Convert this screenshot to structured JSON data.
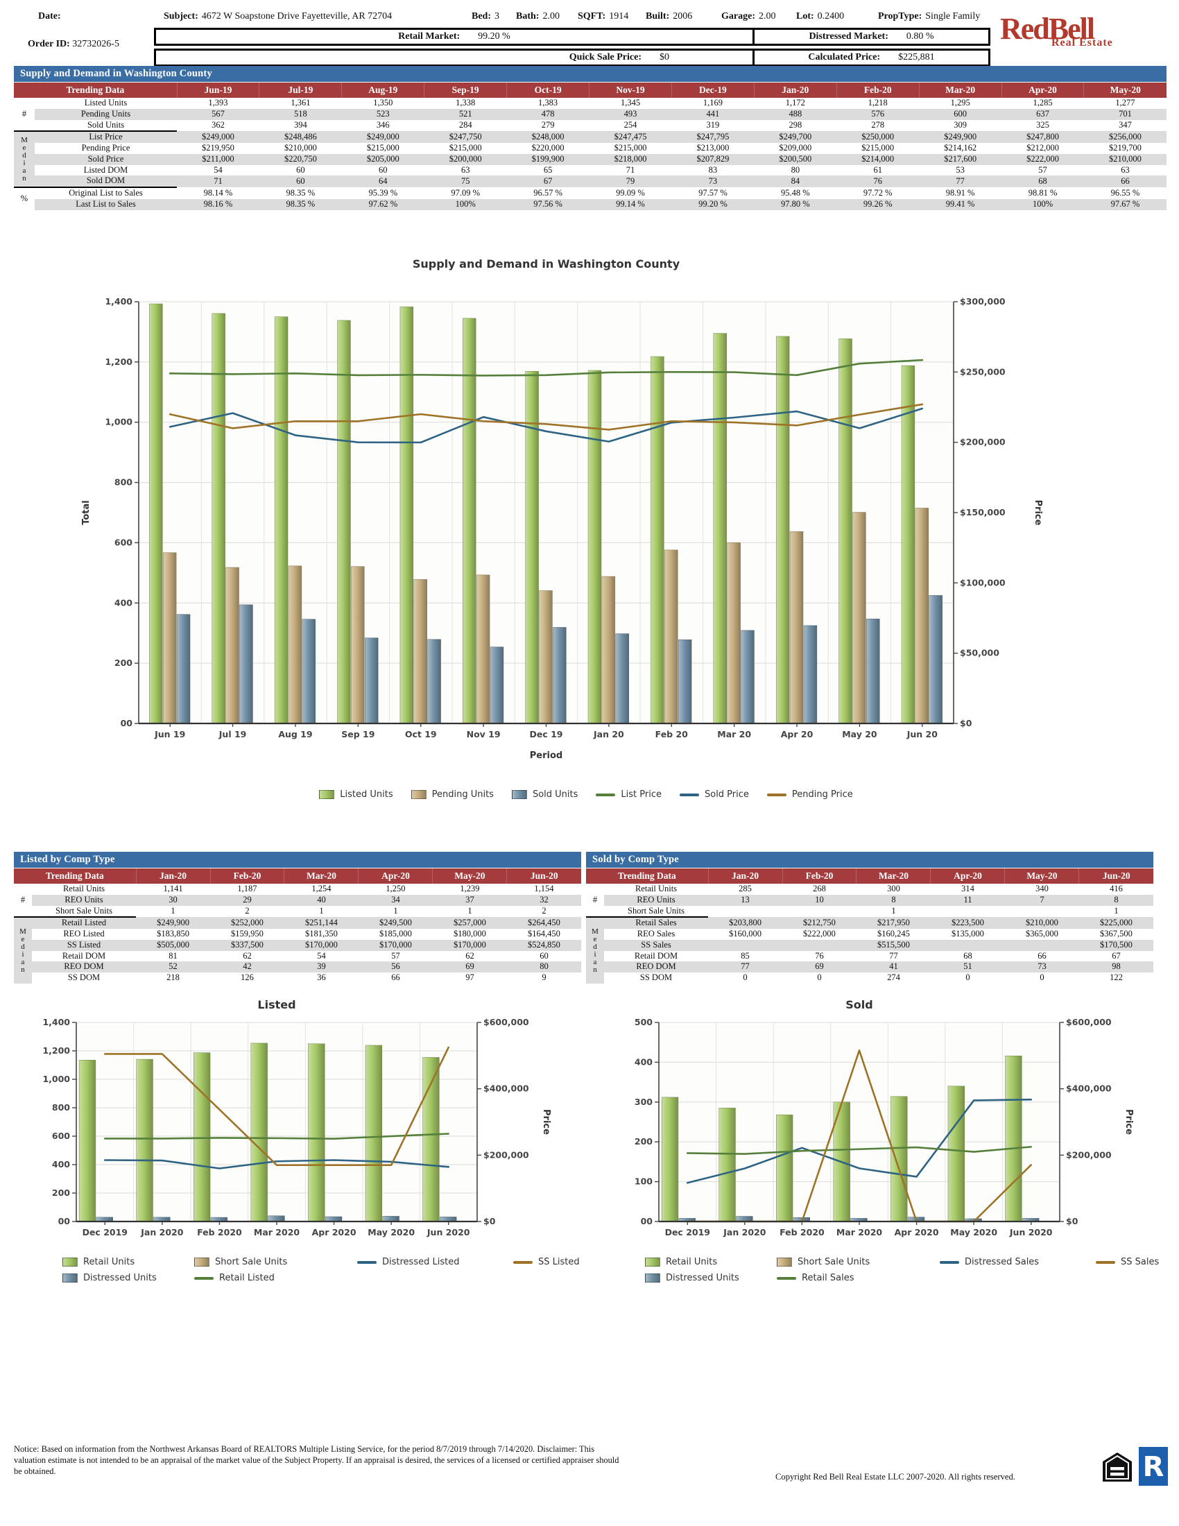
{
  "header": {
    "fields": [
      {
        "label": "Date:",
        "value": ""
      },
      {
        "label": "Subject:",
        "value": "4672 W Soapstone Drive Fayetteville, AR 72704"
      },
      {
        "label": "Bed:",
        "value": "3"
      },
      {
        "label": "Bath:",
        "value": "2.00"
      },
      {
        "label": "SQFT:",
        "value": "1914"
      },
      {
        "label": "Built:",
        "value": "2006"
      },
      {
        "label": "Garage:",
        "value": "2.00"
      },
      {
        "label": "Lot:",
        "value": "0.2400"
      },
      {
        "label": "PropType:",
        "value": "Single Family"
      }
    ],
    "order_id_label": "Order ID:",
    "order_id": "32732026-5",
    "retail_market_label": "Retail Market:",
    "retail_market_value": "99.20 %",
    "distressed_market_label": "Distressed Market:",
    "distressed_market_value": "0.80 %",
    "quick_sale_label": "Quick Sale Price:",
    "quick_sale_value": "$0",
    "calculated_label": "Calculated Price:",
    "calculated_value": "$225,881",
    "logo_title": "RedBell",
    "logo_subtitle": "Real Estate"
  },
  "supply_table": {
    "title": "Supply and Demand in Washington County",
    "first_column": "Trending Data",
    "months": [
      "Jun-19",
      "Jul-19",
      "Aug-19",
      "Sep-19",
      "Oct-19",
      "Nov-19",
      "Dec-19",
      "Jan-20",
      "Feb-20",
      "Mar-20",
      "Apr-20",
      "May-20"
    ],
    "groups": [
      {
        "label": "#",
        "rows": [
          {
            "label": "Listed Units",
            "values": [
              "1,393",
              "1,361",
              "1,350",
              "1,338",
              "1,383",
              "1,345",
              "1,169",
              "1,172",
              "1,218",
              "1,295",
              "1,285",
              "1,277"
            ]
          },
          {
            "label": "Pending Units",
            "values": [
              "567",
              "518",
              "523",
              "521",
              "478",
              "493",
              "441",
              "488",
              "576",
              "600",
              "637",
              "701"
            ]
          },
          {
            "label": "Sold Units",
            "values": [
              "362",
              "394",
              "346",
              "284",
              "279",
              "254",
              "319",
              "298",
              "278",
              "309",
              "325",
              "347"
            ]
          }
        ]
      },
      {
        "label": "Median",
        "rows": [
          {
            "label": "List Price",
            "values": [
              "$249,000",
              "$248,486",
              "$249,000",
              "$247,750",
              "$248,000",
              "$247,475",
              "$247,795",
              "$249,700",
              "$250,000",
              "$249,900",
              "$247,800",
              "$256,000"
            ]
          },
          {
            "label": "Pending Price",
            "values": [
              "$219,950",
              "$210,000",
              "$215,000",
              "$215,000",
              "$220,000",
              "$215,000",
              "$213,000",
              "$209,000",
              "$215,000",
              "$214,162",
              "$212,000",
              "$219,700"
            ]
          },
          {
            "label": "Sold Price",
            "values": [
              "$211,000",
              "$220,750",
              "$205,000",
              "$200,000",
              "$199,900",
              "$218,000",
              "$207,829",
              "$200,500",
              "$214,000",
              "$217,600",
              "$222,000",
              "$210,000"
            ]
          },
          {
            "label": "Listed DOM",
            "values": [
              "54",
              "60",
              "60",
              "63",
              "65",
              "71",
              "83",
              "80",
              "61",
              "53",
              "57",
              "63"
            ]
          },
          {
            "label": "Sold DOM",
            "values": [
              "71",
              "60",
              "64",
              "75",
              "67",
              "79",
              "73",
              "84",
              "76",
              "77",
              "68",
              "66"
            ]
          }
        ]
      },
      {
        "label": "%",
        "rows": [
          {
            "label": "Original List to Sales",
            "values": [
              "98.14 %",
              "98.35 %",
              "95.39 %",
              "97.09 %",
              "96.57 %",
              "99.09 %",
              "97.57 %",
              "95.48 %",
              "97.72 %",
              "98.91 %",
              "98.81 %",
              "96.55 %"
            ]
          },
          {
            "label": "Last List to Sales",
            "values": [
              "98.16 %",
              "98.35 %",
              "97.62 %",
              "100%",
              "97.56 %",
              "99.14 %",
              "99.20 %",
              "97.80 %",
              "99.26 %",
              "99.41 %",
              "100%",
              "97.67 %"
            ]
          }
        ]
      }
    ]
  },
  "listed_table": {
    "title": "Listed by Comp Type",
    "first_column": "Trending Data",
    "months": [
      "Jan-20",
      "Feb-20",
      "Mar-20",
      "Apr-20",
      "May-20",
      "Jun-20"
    ],
    "groups": [
      {
        "label": "#",
        "rows": [
          {
            "label": "Retail Units",
            "values": [
              "1,141",
              "1,187",
              "1,254",
              "1,250",
              "1,239",
              "1,154"
            ]
          },
          {
            "label": "REO Units",
            "values": [
              "30",
              "29",
              "40",
              "34",
              "37",
              "32"
            ]
          },
          {
            "label": "Short Sale Units",
            "values": [
              "1",
              "2",
              "1",
              "1",
              "1",
              "2"
            ]
          }
        ]
      },
      {
        "label": "Median",
        "rows": [
          {
            "label": "Retail Listed",
            "values": [
              "$249,900",
              "$252,000",
              "$251,144",
              "$249,500",
              "$257,000",
              "$264,450"
            ]
          },
          {
            "label": "REO Listed",
            "values": [
              "$183,850",
              "$159,950",
              "$181,350",
              "$185,000",
              "$180,000",
              "$164,450"
            ]
          },
          {
            "label": "SS Listed",
            "values": [
              "$505,000",
              "$337,500",
              "$170,000",
              "$170,000",
              "$170,000",
              "$524,850"
            ]
          },
          {
            "label": "Retail DOM",
            "values": [
              "81",
              "62",
              "54",
              "57",
              "62",
              "60"
            ]
          },
          {
            "label": "REO DOM",
            "values": [
              "52",
              "42",
              "39",
              "56",
              "69",
              "80"
            ]
          },
          {
            "label": "SS DOM",
            "values": [
              "218",
              "126",
              "36",
              "66",
              "97",
              "9"
            ]
          }
        ]
      }
    ]
  },
  "sold_table": {
    "title": "Sold by Comp Type",
    "first_column": "Trending Data",
    "months": [
      "Jan-20",
      "Feb-20",
      "Mar-20",
      "Apr-20",
      "May-20",
      "Jun-20"
    ],
    "groups": [
      {
        "label": "#",
        "rows": [
          {
            "label": "Retail Units",
            "values": [
              "285",
              "268",
              "300",
              "314",
              "340",
              "416"
            ]
          },
          {
            "label": "REO Units",
            "values": [
              "13",
              "10",
              "8",
              "11",
              "7",
              "8"
            ]
          },
          {
            "label": "Short Sale Units",
            "values": [
              "",
              "",
              "1",
              "",
              "",
              "1"
            ]
          }
        ]
      },
      {
        "label": "Median",
        "rows": [
          {
            "label": "Retail Sales",
            "values": [
              "$203,800",
              "$212,750",
              "$217,950",
              "$223,500",
              "$210,000",
              "$225,000"
            ]
          },
          {
            "label": "REO Sales",
            "values": [
              "$160,000",
              "$222,000",
              "$160,245",
              "$135,000",
              "$365,000",
              "$367,500"
            ]
          },
          {
            "label": "SS Sales",
            "values": [
              "",
              "",
              "$515,500",
              "",
              "",
              "$170,500"
            ]
          },
          {
            "label": "Retail DOM",
            "values": [
              "85",
              "76",
              "77",
              "68",
              "66",
              "67"
            ]
          },
          {
            "label": "REO DOM",
            "values": [
              "77",
              "69",
              "41",
              "51",
              "73",
              "98"
            ]
          },
          {
            "label": "SS DOM",
            "values": [
              "0",
              "0",
              "274",
              "0",
              "0",
              "122"
            ]
          }
        ]
      }
    ]
  },
  "chart_data": [
    {
      "id": "main",
      "type": "bar",
      "title": "Supply and Demand in Washington County",
      "categories": [
        "Jun 19",
        "Jul 19",
        "Aug 19",
        "Sep 19",
        "Oct 19",
        "Nov 19",
        "Dec 19",
        "Jan 20",
        "Feb 20",
        "Mar 20",
        "Apr 20",
        "May 20",
        "Jun 20"
      ],
      "bar_series": [
        {
          "name": "Listed Units",
          "color": "#a6c965",
          "values": [
            1393,
            1361,
            1350,
            1338,
            1383,
            1345,
            1169,
            1172,
            1218,
            1295,
            1285,
            1277,
            1188
          ]
        },
        {
          "name": "Pending Units",
          "color": "#c7ae7e",
          "values": [
            567,
            518,
            523,
            521,
            478,
            493,
            441,
            488,
            576,
            600,
            637,
            701,
            715
          ]
        },
        {
          "name": "Sold Units",
          "color": "#7392a8",
          "values": [
            362,
            394,
            346,
            284,
            279,
            254,
            319,
            298,
            278,
            309,
            325,
            347,
            425
          ]
        }
      ],
      "line_series": [
        {
          "name": "List Price",
          "color": "#55803c",
          "values": [
            249000,
            248486,
            249000,
            247750,
            248000,
            247475,
            247795,
            249700,
            250000,
            249900,
            247800,
            256000,
            258500
          ]
        },
        {
          "name": "Sold Price",
          "color": "#2e6384",
          "values": [
            211000,
            220750,
            205000,
            200000,
            199900,
            218000,
            207829,
            200500,
            214000,
            217600,
            222000,
            210000,
            224000
          ]
        },
        {
          "name": "Pending Price",
          "color": "#9e7327",
          "values": [
            219950,
            210000,
            215000,
            215000,
            220000,
            215000,
            213000,
            209000,
            215000,
            214162,
            212000,
            219700,
            227000
          ]
        }
      ],
      "xlabel": "Period",
      "ylabel_left": "Total",
      "ylabel_right": "Price",
      "ylim_left": [
        0,
        1400
      ],
      "ystep_left": 200,
      "ylim_right": [
        0,
        300000
      ],
      "ystep_right": 50000,
      "grid": true,
      "legend_position": "bottom",
      "legend_order": [
        "Listed Units",
        "Pending Units",
        "Sold Units",
        "List Price",
        "Sold Price",
        "Pending Price"
      ]
    },
    {
      "id": "listed",
      "type": "bar",
      "title": "Listed",
      "categories": [
        "Dec 2019",
        "Jan 2020",
        "Feb 2020",
        "Mar 2020",
        "Apr 2020",
        "May 2020",
        "Jun 2020"
      ],
      "bar_series": [
        {
          "name": "Retail Units",
          "color": "#a6c965",
          "values": [
            1135,
            1141,
            1187,
            1254,
            1250,
            1239,
            1154
          ]
        },
        {
          "name": "Distressed Units",
          "color": "#7392a8",
          "values": [
            30,
            30,
            29,
            40,
            34,
            37,
            32
          ]
        },
        {
          "name": "Short Sale Units",
          "color": "#c7ae7e",
          "values": [
            1,
            1,
            2,
            1,
            1,
            1,
            2
          ]
        }
      ],
      "line_series": [
        {
          "name": "Distressed Listed",
          "color": "#2e6384",
          "values": [
            185000,
            183850,
            159950,
            181350,
            185000,
            180000,
            164450
          ]
        },
        {
          "name": "Retail Listed",
          "color": "#55803c",
          "values": [
            250000,
            249900,
            252000,
            251144,
            249500,
            257000,
            264450
          ]
        },
        {
          "name": "SS Listed",
          "color": "#9e7327",
          "values": [
            505000,
            505000,
            337500,
            170000,
            170000,
            170000,
            524850
          ]
        }
      ],
      "xlabel": "",
      "ylabel_left": "",
      "ylabel_right": "Price",
      "ylim_left": [
        0,
        1400
      ],
      "ystep_left": 200,
      "ylim_right": [
        0,
        600000
      ],
      "ystep_right": 200000,
      "grid": true,
      "legend_position": "bottom",
      "legend_order": [
        "Retail Units",
        "Short Sale Units",
        "Distressed Listed",
        "SS Listed",
        "Distressed Units",
        "Retail Listed"
      ]
    },
    {
      "id": "sold",
      "type": "bar",
      "title": "Sold",
      "categories": [
        "Dec 2019",
        "Jan 2020",
        "Feb 2020",
        "Mar 2020",
        "Apr 2020",
        "May 2020",
        "Jun 2020"
      ],
      "bar_series": [
        {
          "name": "Retail Units",
          "color": "#a6c965",
          "values": [
            312,
            285,
            268,
            300,
            314,
            340,
            416
          ]
        },
        {
          "name": "Distressed Units",
          "color": "#7392a8",
          "values": [
            8,
            13,
            10,
            8,
            11,
            7,
            8
          ]
        },
        {
          "name": "Short Sale Units",
          "color": "#c7ae7e",
          "values": [
            0,
            0,
            0,
            1,
            0,
            0,
            1
          ]
        }
      ],
      "line_series": [
        {
          "name": "Distressed Sales",
          "color": "#2e6384",
          "values": [
            116500,
            160000,
            222000,
            160245,
            135000,
            365000,
            367500
          ]
        },
        {
          "name": "Retail Sales",
          "color": "#55803c",
          "values": [
            206000,
            203800,
            212750,
            217950,
            223500,
            210000,
            225000
          ]
        },
        {
          "name": "SS Sales",
          "color": "#9e7327",
          "values": [
            0,
            0,
            0,
            515500,
            0,
            0,
            170500
          ]
        }
      ],
      "xlabel": "",
      "ylabel_left": "",
      "ylabel_right": "Price",
      "ylim_left": [
        0,
        500
      ],
      "ystep_left": 100,
      "ylim_right": [
        0,
        600000
      ],
      "ystep_right": 200000,
      "grid": true,
      "legend_position": "bottom",
      "legend_order": [
        "Retail Units",
        "Short Sale Units",
        "Distressed Sales",
        "SS Sales",
        "Distressed Units",
        "Retail Sales"
      ]
    }
  ],
  "footer": {
    "notice": "Notice: Based on information from the Northwest Arkansas Board of REALTORS Multiple Listing Service, for the period 8/7/2019 through 7/14/2020. Disclaimer: This valuation estimate is not intended to be an appraisal of the market value of the Subject Property. If an appraisal is desired, the services of a licensed or certified appraiser should be obtained.",
    "copyright": "Copyright Red Bell Real Estate LLC 2007-2020. All rights reserved.",
    "icons": [
      "equal-housing-icon",
      "realtor-icon"
    ]
  }
}
